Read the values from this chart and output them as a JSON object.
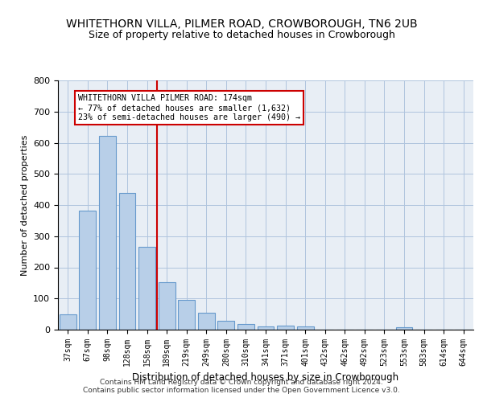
{
  "title": "WHITETHORN VILLA, PILMER ROAD, CROWBOROUGH, TN6 2UB",
  "subtitle": "Size of property relative to detached houses in Crowborough",
  "xlabel": "Distribution of detached houses by size in Crowborough",
  "ylabel": "Number of detached properties",
  "footnote1": "Contains HM Land Registry data © Crown copyright and database right 2024.",
  "footnote2": "Contains public sector information licensed under the Open Government Licence v3.0.",
  "categories": [
    "37sqm",
    "67sqm",
    "98sqm",
    "128sqm",
    "158sqm",
    "189sqm",
    "219sqm",
    "249sqm",
    "280sqm",
    "310sqm",
    "341sqm",
    "371sqm",
    "401sqm",
    "432sqm",
    "462sqm",
    "492sqm",
    "523sqm",
    "553sqm",
    "583sqm",
    "614sqm",
    "644sqm"
  ],
  "values": [
    48,
    383,
    622,
    438,
    265,
    152,
    96,
    55,
    28,
    18,
    10,
    12,
    10,
    0,
    0,
    0,
    0,
    8,
    0,
    0,
    0
  ],
  "bar_color": "#b8cfe8",
  "bar_edge_color": "#6699cc",
  "vline_color": "#cc0000",
  "annotation_line1": "WHITETHORN VILLA PILMER ROAD: 174sqm",
  "annotation_line2": "← 77% of detached houses are smaller (1,632)",
  "annotation_line3": "23% of semi-detached houses are larger (490) →",
  "annotation_box_color": "#cc0000",
  "ylim": [
    0,
    800
  ],
  "yticks": [
    0,
    100,
    200,
    300,
    400,
    500,
    600,
    700,
    800
  ],
  "grid_color": "#b0c4de",
  "bg_color": "#e8eef5",
  "title_fontsize": 10,
  "subtitle_fontsize": 9
}
